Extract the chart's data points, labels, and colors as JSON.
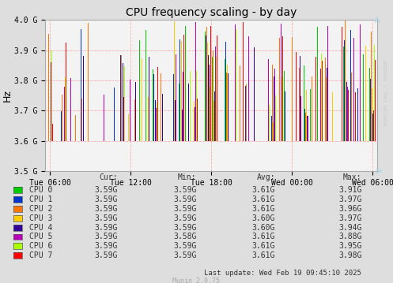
{
  "title": "CPU frequency scaling - by day",
  "ylabel": "Hz",
  "background_color": "#dedede",
  "plot_bg_color": "#f3f3f3",
  "grid_color": "#ff9999",
  "ylim": [
    3500000000.0,
    4000000000.0
  ],
  "yticks": [
    3500000000.0,
    3600000000.0,
    3700000000.0,
    3800000000.0,
    3900000000.0,
    4000000000.0
  ],
  "ytick_labels": [
    "3.5 G",
    "3.6 G",
    "3.7 G",
    "3.8 G",
    "3.9 G",
    "4.0 G"
  ],
  "xtick_labels": [
    "Tue 06:00",
    "Tue 12:00",
    "Tue 18:00",
    "Wed 00:00",
    "Wed 06:00"
  ],
  "cpu_colors": [
    "#00cc00",
    "#0033cc",
    "#ff7700",
    "#ffcc00",
    "#330099",
    "#bb00bb",
    "#aaff00",
    "#ff0000"
  ],
  "cpu_names": [
    "CPU 0",
    "CPU 1",
    "CPU 2",
    "CPU 3",
    "CPU 4",
    "CPU 5",
    "CPU 6",
    "CPU 7"
  ],
  "cur_values": [
    "3.59G",
    "3.59G",
    "3.59G",
    "3.59G",
    "3.59G",
    "3.59G",
    "3.59G",
    "3.59G"
  ],
  "min_values": [
    "3.59G",
    "3.59G",
    "3.59G",
    "3.59G",
    "3.59G",
    "3.58G",
    "3.59G",
    "3.59G"
  ],
  "avg_values": [
    "3.61G",
    "3.61G",
    "3.61G",
    "3.60G",
    "3.60G",
    "3.61G",
    "3.61G",
    "3.61G"
  ],
  "max_values": [
    "3.91G",
    "3.97G",
    "3.96G",
    "3.97G",
    "3.94G",
    "3.88G",
    "3.95G",
    "3.98G"
  ],
  "last_update": "Last update: Wed Feb 19 09:45:10 2025",
  "munin_version": "Munin 2.0.75",
  "rrdtool_text": "RRDTOOL / TOBI OETIKER",
  "base_freq": 3600000000.0,
  "n_groups": 50,
  "seed": 42
}
